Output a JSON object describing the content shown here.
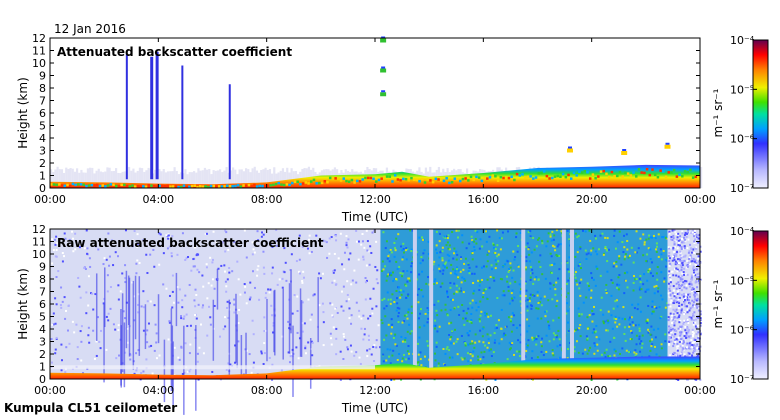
{
  "date": "12 Jan 2016",
  "footer": "Kumpula CL51 ceilometer",
  "chart_data": [
    {
      "type": "heatmap",
      "title": "Attenuated backscatter coefficient",
      "xlabel": "Time (UTC)",
      "ylabel": "Height (km)",
      "x_ticks": [
        "00:00",
        "04:00",
        "08:00",
        "12:00",
        "16:00",
        "20:00",
        "00:00"
      ],
      "y_ticks": [
        "0",
        "1",
        "2",
        "3",
        "4",
        "5",
        "6",
        "7",
        "8",
        "9",
        "10",
        "11",
        "12"
      ],
      "xlim_hours": [
        0,
        24
      ],
      "ylim_km": [
        0,
        12
      ],
      "colorbar": {
        "label": "m⁻¹ sr⁻¹",
        "ticks": [
          "10⁻⁷",
          "10⁻⁶",
          "10⁻⁵",
          "10⁻⁴"
        ],
        "scale": "log",
        "range": [
          1e-07,
          0.0001
        ]
      },
      "boundary_layer_top_km": [
        [
          0,
          0.5
        ],
        [
          2,
          0.45
        ],
        [
          4,
          0.35
        ],
        [
          6,
          0.3
        ],
        [
          8,
          0.45
        ],
        [
          10,
          1.0
        ],
        [
          12,
          1.1
        ],
        [
          13,
          1.3
        ],
        [
          14,
          0.9
        ],
        [
          16,
          1.2
        ],
        [
          18,
          1.6
        ],
        [
          20,
          1.7
        ],
        [
          22,
          1.85
        ],
        [
          24,
          1.8
        ]
      ],
      "precipitation_streaks_hours": [
        2.8,
        3.7,
        3.9,
        4.85,
        6.6
      ],
      "elevated_features": [
        {
          "hour": 12.3,
          "km": 7.5
        },
        {
          "hour": 12.3,
          "km": 9.4
        },
        {
          "hour": 12.3,
          "km": 11.8
        },
        {
          "hour": 19.2,
          "km": 3.0
        },
        {
          "hour": 21.2,
          "km": 2.8
        },
        {
          "hour": 22.8,
          "km": 3.3
        }
      ]
    },
    {
      "type": "heatmap",
      "title": "Raw attenuated backscatter coefficient",
      "xlabel": "Time (UTC)",
      "ylabel": "Height (km)",
      "x_ticks": [
        "00:00",
        "04:00",
        "08:00",
        "12:00",
        "16:00",
        "20:00",
        "00:00"
      ],
      "y_ticks": [
        "0",
        "1",
        "2",
        "3",
        "4",
        "5",
        "6",
        "7",
        "8",
        "9",
        "10",
        "11",
        "12"
      ],
      "xlim_hours": [
        0,
        24
      ],
      "ylim_km": [
        0,
        12
      ],
      "colorbar": {
        "label": "m⁻¹ sr⁻¹",
        "ticks": [
          "10⁻⁷",
          "10⁻⁶",
          "10⁻⁵",
          "10⁻⁴"
        ],
        "scale": "log",
        "range": [
          1e-07,
          0.0001
        ]
      },
      "noise_regimes": [
        {
          "from_hour": 0,
          "to_hour": 12.2,
          "level": "low"
        },
        {
          "from_hour": 12.2,
          "to_hour": 22.8,
          "level": "high"
        },
        {
          "from_hour": 22.8,
          "to_hour": 24,
          "level": "low"
        }
      ],
      "clear_gap_hours": [
        13.4,
        14.0,
        17.4,
        18.9,
        19.2
      ]
    }
  ],
  "colors": {
    "scale": [
      "#ffffff",
      "#c8c8ff",
      "#4444ff",
      "#00c8ff",
      "#00e000",
      "#ffff00",
      "#ff8000",
      "#ff0000",
      "#a00060",
      "#600060"
    ]
  }
}
